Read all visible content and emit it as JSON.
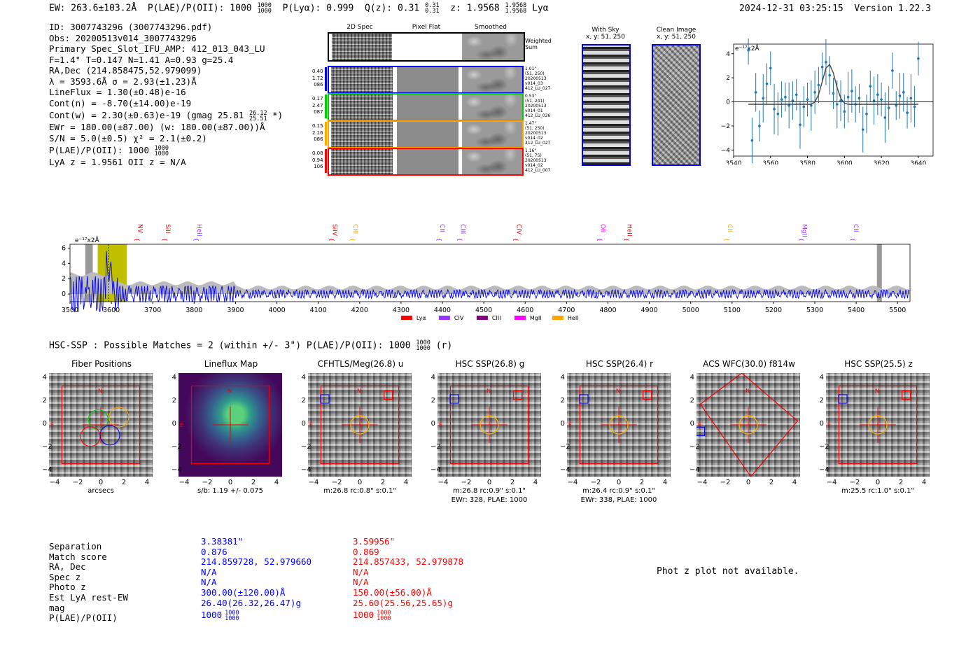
{
  "header": {
    "ew": "EW: 263.6±103.2Å",
    "plae_label": "P(LAE)/P(OII): 1000",
    "plae_hi": "1000",
    "plae_lo": "1000",
    "plya": "P(Lyα): 0.999",
    "qz_label": "Q(z): 0.31",
    "qz_hi": "0.31",
    "qz_lo": "0.31",
    "z_label": "z: 1.9568",
    "z_hi": "1.9568",
    "z_lo": "1.9568",
    "line": "Lyα",
    "timestamp": "2024-12-31 03:25:15",
    "version": "Version 1.22.3"
  },
  "info": {
    "id": "ID: 3007743296 (3007743296.pdf)",
    "obs": "Obs: 20200513v014_3007743296",
    "primary": "Primary Spec_Slot_IFU_AMP: 412_013_043_LU",
    "params": "F=1.4\"  T=0.147  N=1.41  A=0.93  g=25.4",
    "radec": "RA,Dec (214.858475,52.979099)",
    "lambda": "λ = 3593.6Å  σ = 2.93(±1.23)Å",
    "lineflux": "LineFlux = 1.30(±0.48)e-16",
    "contn": "Cont(n) = -8.70(±14.00)e-19",
    "contw": "Cont(w) = 2.30(±0.63)e-19 (gmag 25.81",
    "contw_hi": "26.12",
    "contw_lo": "25.51",
    "contw_end": "*)",
    "ewr": "EWr = 180.00(±87.00) (w: 180.00(±87.00))Å",
    "sn": "S/N = 5.0(±0.5)  χ² = 2.1(±0.2)",
    "plae": "P(LAE)/P(OII): 1000",
    "plae_hi": "1000",
    "plae_lo": "1000",
    "lyaz": "LyA z = 1.9561  OII z = N/A"
  },
  "spec2d": {
    "col_titles": [
      "2D Spec",
      "Pixel Flat",
      "Smoothed"
    ],
    "weighted": [
      "Weighted",
      "Sum"
    ],
    "rows": [
      {
        "left": [
          "0.40",
          "1.72",
          "086"
        ],
        "right": [
          "1.01\"",
          "(51, 250)",
          "20200513",
          "v014_03",
          "412_LU_027"
        ],
        "color": "#0000ff"
      },
      {
        "left": [
          "0.17",
          "2.47",
          "087"
        ],
        "right": [
          "0.53\"",
          "(51, 241)",
          "20200513",
          "v014_01",
          "412_LU_026"
        ],
        "color": "#00cc00"
      },
      {
        "left": [
          "0.15",
          "2.16",
          "086"
        ],
        "right": [
          "1.47\"",
          "(51, 250)",
          "20200513",
          "v014_02",
          "412_LU_027"
        ],
        "color": "#ffa500"
      },
      {
        "left": [
          "0.08",
          "0.94",
          "106"
        ],
        "right": [
          "1.16\"",
          "(51, 75)",
          "20200513",
          "v014_02",
          "412_LU_007"
        ],
        "color": "#ff0000"
      }
    ]
  },
  "sky": {
    "with_sky": "With Sky",
    "with_sky_xy": "x, y: 51, 250",
    "clean": "Clean Image",
    "clean_xy": "x, y: 51, 250"
  },
  "zoom_plot": {
    "ylabel": "e⁻¹⁷x2Å",
    "xticks": [
      "3540",
      "3560",
      "3580",
      "3600",
      "3620",
      "3640"
    ],
    "yticks": [
      "4",
      "2",
      "0",
      "−2",
      "−4"
    ],
    "x": [
      3548,
      3550,
      3552,
      3554,
      3556,
      3558,
      3560,
      3562,
      3564,
      3566,
      3568,
      3570,
      3572,
      3574,
      3576,
      3578,
      3580,
      3582,
      3584,
      3586,
      3588,
      3590,
      3592,
      3594,
      3596,
      3598,
      3600,
      3602,
      3604,
      3606,
      3608,
      3610,
      3612,
      3614,
      3616,
      3618,
      3620,
      3622,
      3624,
      3626,
      3628,
      3630,
      3632,
      3634,
      3636,
      3638,
      3640
    ],
    "y": [
      4.3,
      -3.2,
      0.8,
      -2.0,
      0.3,
      1.5,
      2.8,
      -0.6,
      -1.0,
      0.2,
      0.4,
      -0.3,
      0.1,
      0.6,
      -1.9,
      -0.4,
      0.2,
      -0.3,
      0.8,
      1.4,
      2.9,
      3.3,
      2.2,
      0.7,
      -0.2,
      0.1,
      -0.8,
      0.4,
      0.9,
      -0.2,
      0.3,
      -2.3,
      -1.0,
      1.3,
      0.1,
      0.6,
      0.2,
      -1.3,
      -0.5,
      2.6,
      -0.3,
      0.5,
      0.8,
      -0.9,
      0.3,
      -0.4,
      3.6
    ],
    "fit": [
      -0.2,
      -0.2,
      -0.2,
      -0.2,
      -0.2,
      -0.2,
      -0.2,
      -0.2,
      -0.2,
      -0.2,
      -0.2,
      -0.2,
      -0.2,
      -0.2,
      -0.2,
      -0.2,
      -0.2,
      -0.2,
      0.0,
      0.6,
      1.7,
      2.8,
      3.1,
      2.4,
      1.2,
      0.3,
      -0.1,
      -0.2,
      -0.2,
      -0.2,
      -0.2,
      -0.2,
      -0.2,
      -0.2,
      -0.2,
      -0.2,
      -0.2,
      -0.2,
      -0.2,
      -0.2,
      -0.2,
      -0.2,
      -0.2,
      -0.2,
      -0.2,
      -0.2,
      -0.2
    ],
    "xlim": [
      3540,
      3648
    ],
    "ylim": [
      -4.5,
      4.8
    ]
  },
  "full_spec": {
    "ylabel": "e⁻¹⁷x2Å",
    "xticks": [
      "3500",
      "3600",
      "3700",
      "3800",
      "3900",
      "4000",
      "4100",
      "4200",
      "4300",
      "4400",
      "4500",
      "4600",
      "4700",
      "4800",
      "4900",
      "5000",
      "5100",
      "5200",
      "5300",
      "5400",
      "5500"
    ],
    "yticks": [
      "6",
      "4",
      "2",
      "0"
    ],
    "xlim": [
      3500,
      5530
    ],
    "ylim": [
      -1,
      6.5
    ],
    "lines": [
      {
        "name": "NV",
        "wave": 3665,
        "color": "#ff0000"
      },
      {
        "name": "SiII",
        "wave": 3732,
        "color": "#ff0000"
      },
      {
        "name": "HeII",
        "wave": 3808,
        "color": "#9933ff"
      },
      {
        "name": "SiIV",
        "wave": 4135,
        "color": "#ff0000"
      },
      {
        "name": "CIII",
        "wave": 4185,
        "color": "#ffa500"
      },
      {
        "name": "CII",
        "wave": 4395,
        "color": "#9933ff"
      },
      {
        "name": "CIII",
        "wave": 4445,
        "color": "#9933ff"
      },
      {
        "name": "CIV",
        "wave": 4580,
        "color": "#ff0000"
      },
      {
        "name": "OII",
        "wave": 4783,
        "color": "#ff00ff"
      },
      {
        "name": "HeII",
        "wave": 4847,
        "color": "#ff0000"
      },
      {
        "name": "CII",
        "wave": 5090,
        "color": "#ffa500"
      },
      {
        "name": "MgII",
        "wave": 5270,
        "color": "#9933ff"
      },
      {
        "name": "CII",
        "wave": 5395,
        "color": "#9933ff"
      }
    ],
    "legend": [
      {
        "label": "Lyα",
        "color": "#ff0000"
      },
      {
        "label": "CIV",
        "color": "#9933ff"
      },
      {
        "label": "CIII",
        "color": "#800080"
      },
      {
        "label": "MgII",
        "color": "#ff00ff"
      },
      {
        "label": "HeII",
        "color": "#ffa500"
      }
    ]
  },
  "hsc": {
    "headline": "HSC-SSP : Possible Matches = 2 (within +/- 3\")  P(LAE)/P(OII): 1000",
    "plae_hi": "1000",
    "plae_lo": "1000",
    "tail": "(r)"
  },
  "cutouts": [
    {
      "title": "Fiber Positions",
      "cap1": "arcsecs",
      "cap2": ""
    },
    {
      "title": "Lineflux Map",
      "cap1": "s/b: 1.19 +/- 0.075",
      "cap2": ""
    },
    {
      "title": "CFHTLS/Meg(26.8) u",
      "cap1": "m:26.8 rc:0.8\"  s:0.1\"",
      "cap2": ""
    },
    {
      "title": "HSC SSP(26.8) g",
      "cap1": "m:26.8 rc:0.9\"  s:0.1\"",
      "cap2": "EWr: 328, PLAE: 1000"
    },
    {
      "title": "HSC SSP(26.4) r",
      "cap1": "m:26.4 rc:0.9\"  s:0.1\"",
      "cap2": "EWr: 338, PLAE: 1000"
    },
    {
      "title": "ACS WFC(30.0) f814w",
      "cap1": "",
      "cap2": ""
    },
    {
      "title": "HSC SSP(25.5) z",
      "cap1": "m:25.5 rc:1.0\"  s:0.1\"",
      "cap2": ""
    }
  ],
  "cut_ticks": [
    "4",
    "2",
    "0",
    "−2",
    "−4"
  ],
  "cut_xticks": [
    "−4",
    "−2",
    "0",
    "2",
    "4"
  ],
  "compass": {
    "n": "N",
    "e": "E"
  },
  "matches": {
    "labels": [
      "Separation",
      "Match score",
      "RA, Dec",
      "Spec z",
      "Photo z",
      "Est LyA rest-EW",
      "mag",
      "P(LAE)/P(OII)"
    ],
    "blue": [
      "3.38381\"",
      "0.876",
      "214.859728, 52.979660",
      "N/A",
      "N/A",
      "300.00(±120.00)Å",
      "26.40(26.32,26.47)g",
      "1000"
    ],
    "red": [
      "3.59956\"",
      "0.869",
      "214.857433, 52.979878",
      "N/A",
      "N/A",
      "150.00(±56.00)Å",
      "25.60(25.56,25.65)g",
      "1000"
    ],
    "frac_hi": "1000",
    "frac_lo": "1000",
    "photz_msg": "Phot z plot not available."
  }
}
